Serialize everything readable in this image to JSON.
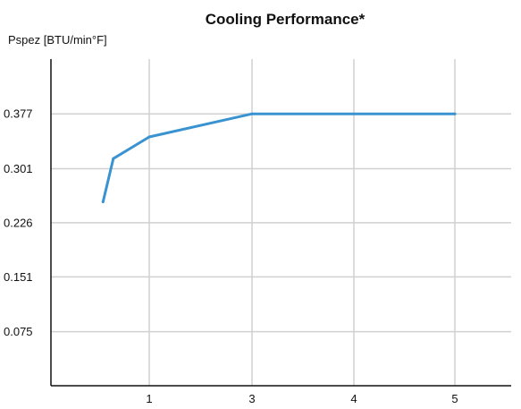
{
  "chart_data": {
    "type": "line",
    "title": "Cooling Performance*",
    "xlabel": "",
    "ylabel": "Pspez [BTU/min°F]",
    "x_categories": [
      "1",
      "3",
      "4",
      "5"
    ],
    "y_ticks": [
      "0.075",
      "0.151",
      "0.226",
      "0.301",
      "0.377"
    ],
    "y_tick_values": [
      0.075,
      0.151,
      0.226,
      0.301,
      0.377
    ],
    "ylim": [
      0,
      0.453
    ],
    "grid": true,
    "series": [
      {
        "color": "#3a93d1",
        "points": [
          {
            "x": 0.1,
            "y": 0.255
          },
          {
            "x": 0.3,
            "y": 0.315
          },
          {
            "x": 1.0,
            "y": 0.345
          },
          {
            "x": 3.0,
            "y": 0.377
          },
          {
            "x": 5.0,
            "y": 0.377
          }
        ]
      }
    ]
  }
}
